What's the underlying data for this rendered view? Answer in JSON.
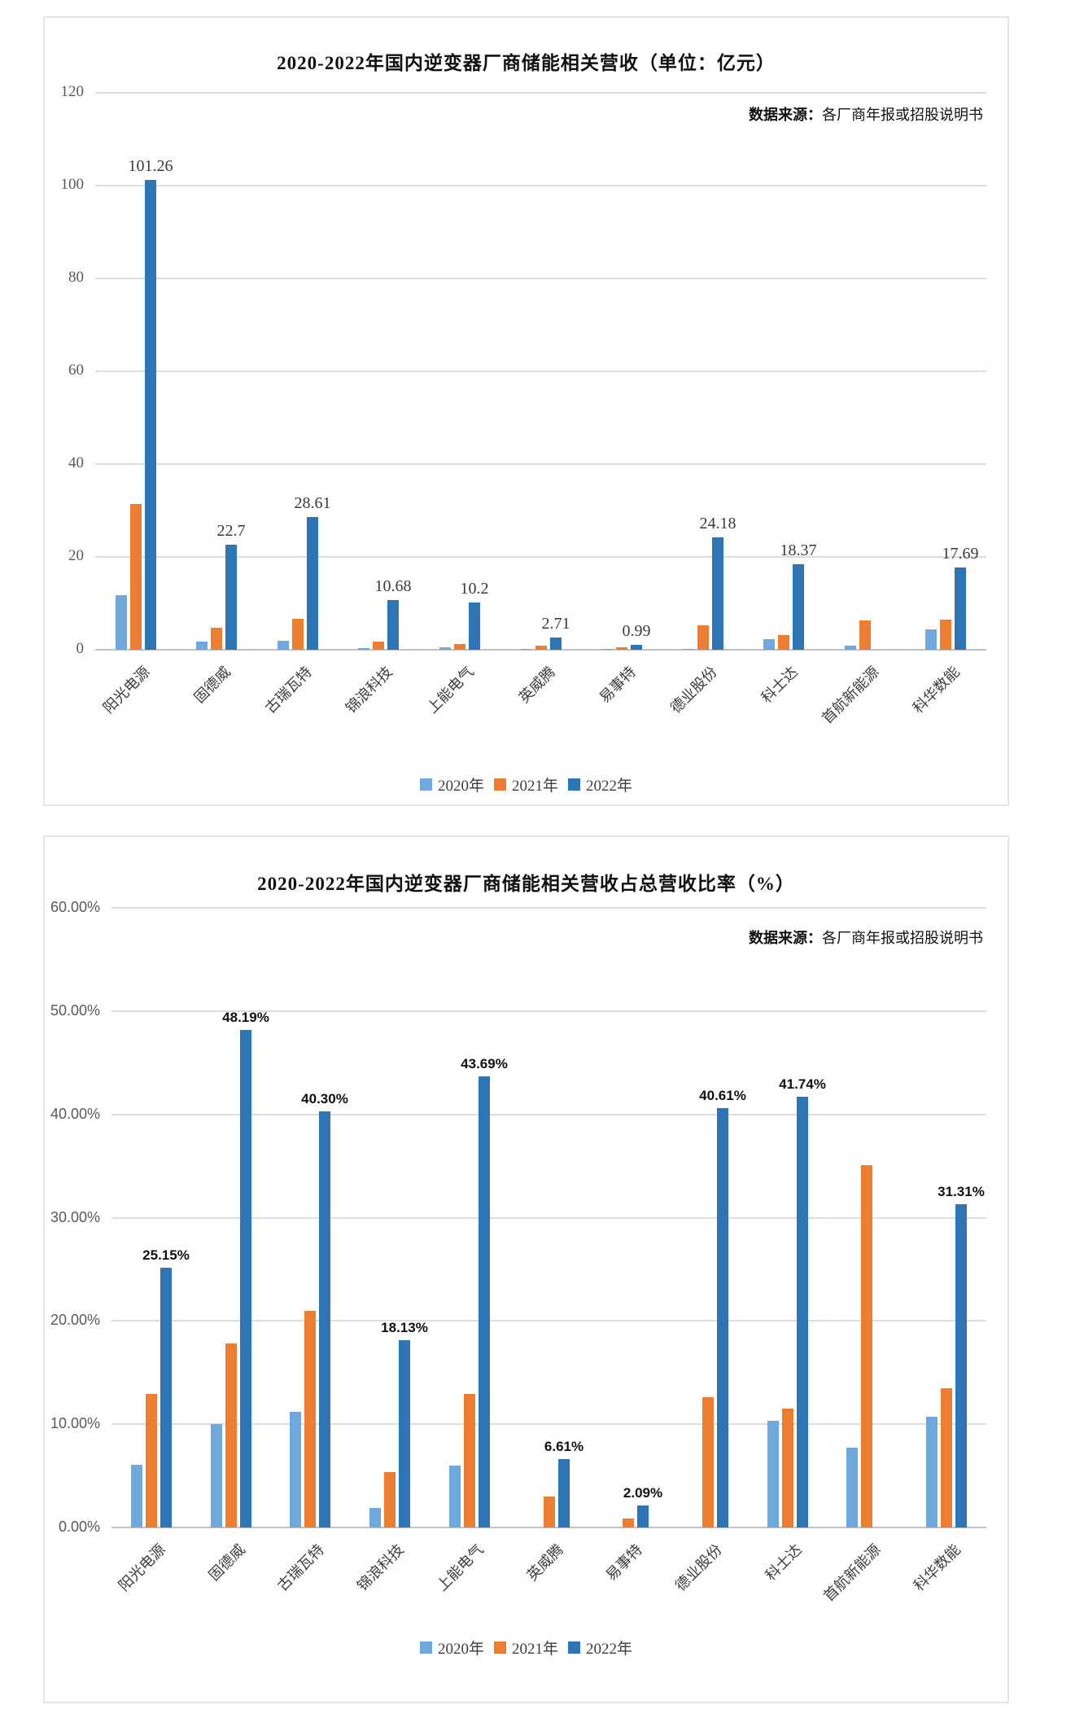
{
  "page": {
    "background": "#ffffff"
  },
  "colors": {
    "series_2020": "#6fa8dc",
    "series_2021": "#ed7d31",
    "series_2022": "#2e75b6",
    "gridline": "#dcdcdc",
    "axis_line": "#c2c2c2",
    "tick_text": "#595959"
  },
  "chart_data": [
    {
      "type": "bar",
      "title": "2020-2022年国内逆变器厂商储能相关营收（单位：亿元）",
      "source_note": {
        "label": "数据来源：",
        "text": "各厂商年报或招股说明书"
      },
      "categories": [
        "阳光电源",
        "固德威",
        "古瑞瓦特",
        "锦浪科技",
        "上能电气",
        "英威腾",
        "易事特",
        "德业股份",
        "科士达",
        "首航新能源",
        "科华数能"
      ],
      "series": [
        {
          "name": "2020年",
          "color": "#6fa8dc",
          "values": [
            11.7,
            1.7,
            2.0,
            0.4,
            0.5,
            0.15,
            0.2,
            0.1,
            2.2,
            0.9,
            4.3
          ]
        },
        {
          "name": "2021年",
          "color": "#ed7d31",
          "values": [
            31.4,
            4.7,
            6.6,
            1.8,
            1.3,
            0.9,
            0.5,
            5.2,
            3.1,
            6.4,
            6.5
          ]
        },
        {
          "name": "2022年",
          "color": "#2e75b6",
          "values": [
            101.26,
            22.7,
            28.61,
            10.68,
            10.2,
            2.71,
            0.99,
            24.18,
            18.37,
            0,
            17.69
          ],
          "data_labels": [
            "101.26",
            "22.7",
            "28.61",
            "10.68",
            "10.2",
            "2.71",
            "0.99",
            "24.18",
            "18.37",
            "",
            "17.69"
          ]
        }
      ],
      "xlabel": "",
      "ylabel": "",
      "ylim": [
        0,
        120
      ],
      "ystep": 20,
      "ytick_labels": [
        "120",
        "100",
        "80",
        "60",
        "40",
        "20",
        "0"
      ],
      "grid": true,
      "legend_position": "bottom"
    },
    {
      "type": "bar",
      "title": "2020-2022年国内逆变器厂商储能相关营收占总营收比率（%）",
      "source_note": {
        "label": "数据来源：",
        "text": "各厂商年报或招股说明书"
      },
      "categories": [
        "阳光电源",
        "固德威",
        "古瑞瓦特",
        "锦浪科技",
        "上能电气",
        "英威腾",
        "易事特",
        "德业股份",
        "科士达",
        "首航新能源",
        "科华数能"
      ],
      "series": [
        {
          "name": "2020年",
          "color": "#6fa8dc",
          "values": [
            6.1,
            10.0,
            11.2,
            1.9,
            6.0,
            0,
            0,
            0,
            10.3,
            7.7,
            10.7
          ]
        },
        {
          "name": "2021年",
          "color": "#ed7d31",
          "values": [
            12.9,
            17.8,
            21.0,
            5.4,
            12.9,
            3.0,
            0.9,
            12.6,
            11.5,
            35.1,
            13.5
          ]
        },
        {
          "name": "2022年",
          "color": "#2e75b6",
          "values": [
            25.15,
            48.19,
            40.3,
            18.13,
            43.69,
            6.61,
            2.09,
            40.61,
            41.74,
            0,
            31.31
          ],
          "data_labels": [
            "25.15%",
            "48.19%",
            "40.30%",
            "18.13%",
            "43.69%",
            "6.61%",
            "2.09%",
            "40.61%",
            "41.74%",
            "",
            "31.31%"
          ]
        }
      ],
      "xlabel": "",
      "ylabel": "",
      "ylim": [
        0,
        60
      ],
      "ystep": 10,
      "ytick_labels": [
        "60.00%",
        "50.00%",
        "40.00%",
        "30.00%",
        "20.00%",
        "10.00%",
        "0.00%"
      ],
      "grid": true,
      "legend_position": "bottom"
    }
  ]
}
